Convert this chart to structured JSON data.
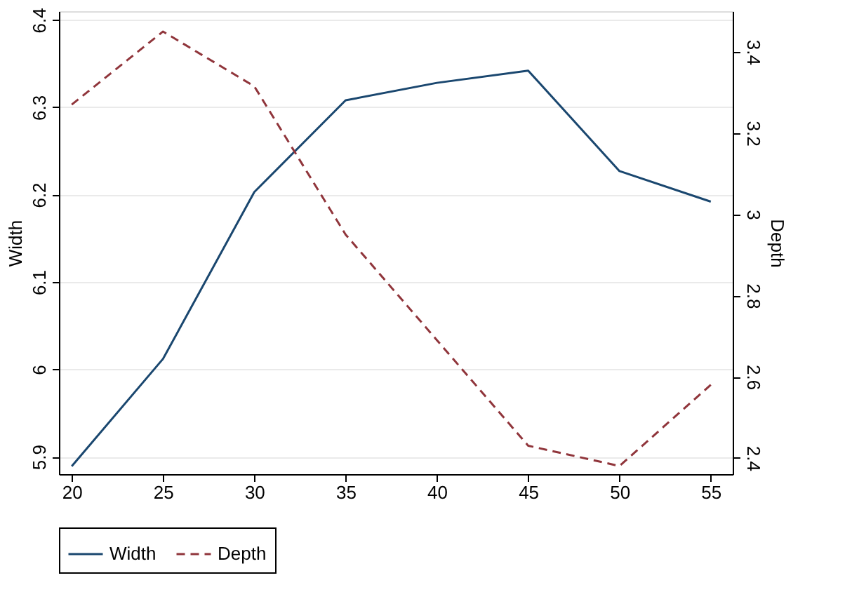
{
  "chart_data": {
    "type": "line",
    "x": [
      20,
      25,
      30,
      35,
      40,
      45,
      50,
      55
    ],
    "series": [
      {
        "name": "Width",
        "color": "#1a476f",
        "line_style": "solid",
        "values": [
          5.889,
          6.012,
          6.203,
          6.308,
          6.328,
          6.342,
          6.227,
          6.192
        ]
      },
      {
        "name": "Depth",
        "color": "#90353b",
        "line_style": "dashed",
        "axis": "y2",
        "values": [
          3.27,
          3.45,
          3.315,
          2.95,
          2.69,
          2.43,
          2.38,
          2.58
        ]
      }
    ],
    "ylabel": "Width",
    "y2label": "Depth",
    "xlim": [
      19.3,
      56.2
    ],
    "xticks": [
      20,
      25,
      30,
      35,
      40,
      45,
      50,
      55
    ],
    "ylim": [
      5.88,
      6.41
    ],
    "yticks": [
      5.9,
      6,
      6.1,
      6.2,
      6.3,
      6.4
    ],
    "y2lim": [
      2.36,
      3.5
    ],
    "y2ticks": [
      2.4,
      2.6,
      2.8,
      3,
      3.2,
      3.4
    ],
    "grid": "y",
    "legend": "bottom",
    "marker": "none"
  }
}
